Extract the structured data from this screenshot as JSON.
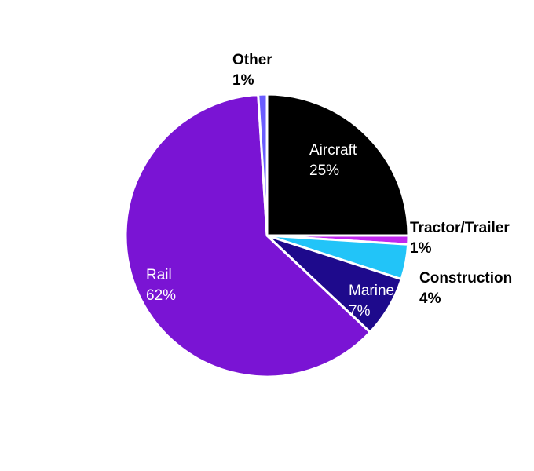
{
  "chart_data": {
    "type": "pie",
    "title": "",
    "slices": [
      {
        "name": "Aircraft",
        "value": 25,
        "pct_label": "25%",
        "color": "#000000",
        "label_color": "#ffffff",
        "label_position": "inside"
      },
      {
        "name": "Tractor/Trailer",
        "value": 1,
        "pct_label": "1%",
        "color": "#c026ee",
        "label_color": "#000000",
        "label_position": "outside"
      },
      {
        "name": "Construction",
        "value": 4,
        "pct_label": "4%",
        "color": "#22c4f8",
        "label_color": "#000000",
        "label_position": "outside"
      },
      {
        "name": "Marine",
        "value": 7,
        "pct_label": "7%",
        "color": "#1e0a8c",
        "label_color": "#ffffff",
        "label_position": "inside"
      },
      {
        "name": "Rail",
        "value": 62,
        "pct_label": "62%",
        "color": "#7a14d4",
        "label_color": "#ffffff",
        "label_position": "inside"
      },
      {
        "name": "Other",
        "value": 1,
        "pct_label": "1%",
        "color": "#6a5cff",
        "label_color": "#000000",
        "label_position": "outside"
      }
    ],
    "start_angle_deg": 0,
    "direction": "clockwise",
    "legend": "none"
  }
}
